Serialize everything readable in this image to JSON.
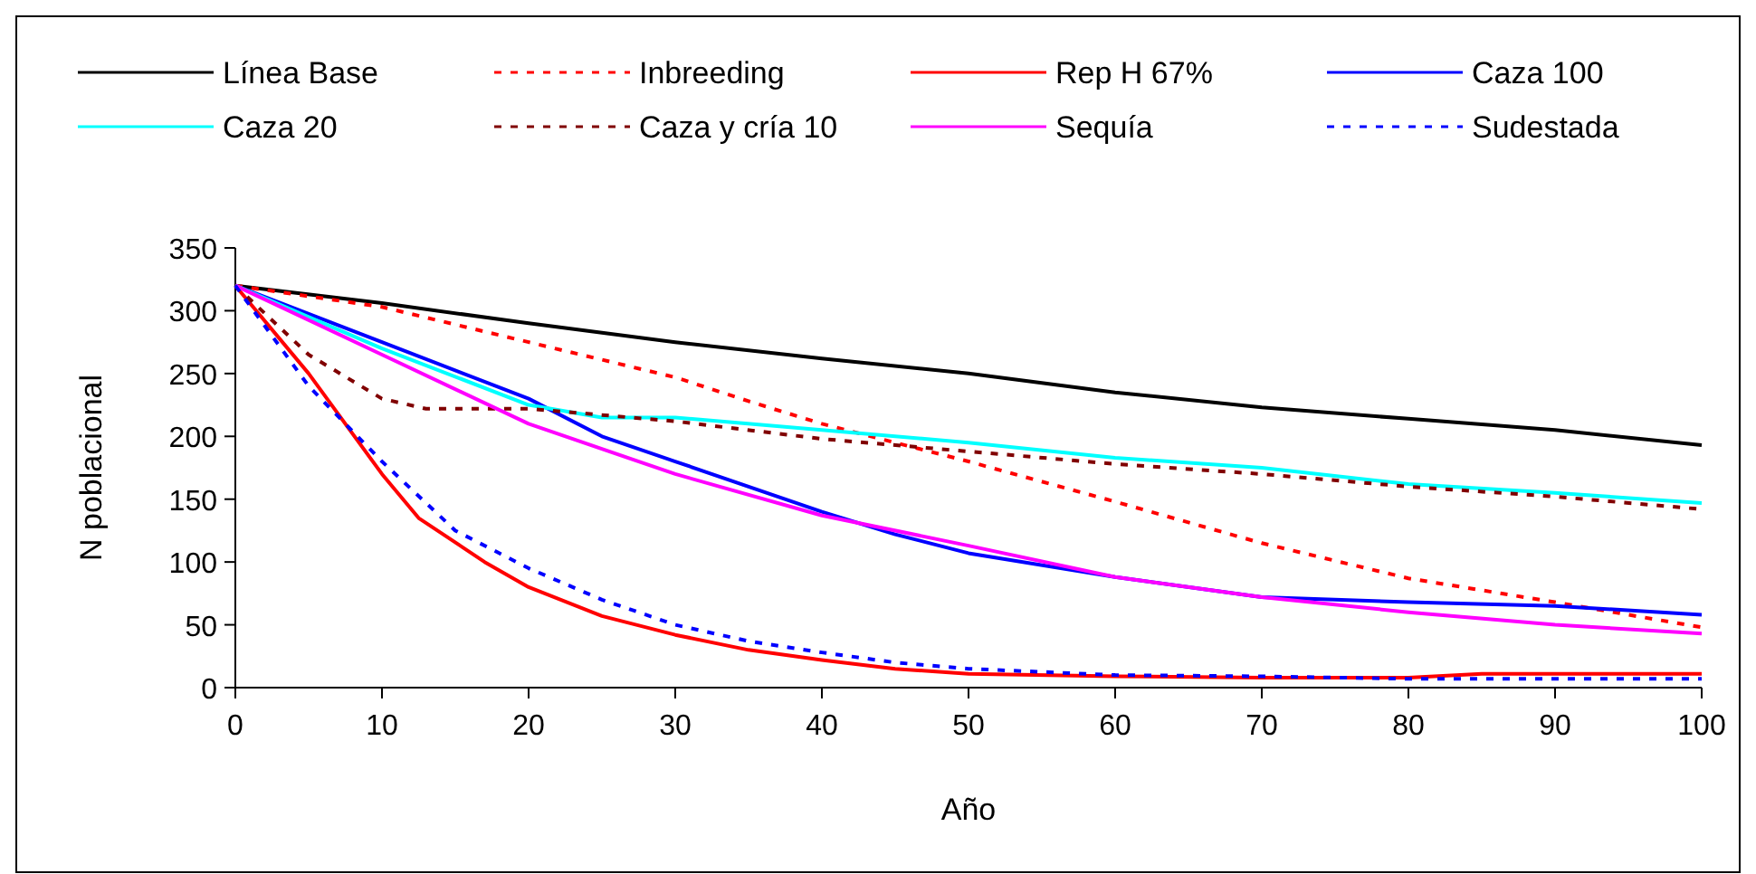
{
  "chart_data": {
    "type": "line",
    "xlabel": "Año",
    "ylabel": "N poblacional",
    "xlim": [
      0,
      100
    ],
    "xticks": [
      0,
      10,
      20,
      30,
      40,
      50,
      60,
      70,
      80,
      90,
      100
    ],
    "ylim": [
      0,
      350
    ],
    "yticks": [
      0,
      50,
      100,
      150,
      200,
      250,
      300,
      350
    ],
    "grid": false,
    "legend": "top",
    "marker": "none",
    "series": [
      {
        "name": "Línea Base",
        "color": "#000000",
        "line_style": "solid",
        "x": [
          0,
          10,
          20,
          30,
          40,
          50,
          60,
          70,
          80,
          90,
          100
        ],
        "values": [
          320,
          306,
          290,
          275,
          262,
          250,
          235,
          223,
          214,
          205,
          193
        ]
      },
      {
        "name": "Inbreeding",
        "color": "#ff0000",
        "line_style": "dashed",
        "x": [
          0,
          10,
          20,
          30,
          35,
          40,
          50,
          60,
          70,
          80,
          90,
          100
        ],
        "values": [
          320,
          303,
          275,
          247,
          228,
          210,
          180,
          148,
          115,
          87,
          68,
          48
        ]
      },
      {
        "name": "Rep H 67%",
        "color": "#ff0000",
        "line_style": "solid",
        "x": [
          0,
          5,
          10,
          12.5,
          17,
          20,
          25,
          30,
          35,
          40,
          45,
          50,
          60,
          70,
          80,
          85,
          100
        ],
        "values": [
          320,
          250,
          170,
          135,
          100,
          80,
          57,
          42,
          30,
          22,
          15,
          11,
          9,
          8,
          8,
          11,
          11
        ]
      },
      {
        "name": "Caza 100",
        "color": "#0000ff",
        "line_style": "solid",
        "x": [
          0,
          10,
          20,
          25,
          30,
          40,
          45,
          50,
          60,
          70,
          80,
          90,
          100
        ],
        "values": [
          320,
          275,
          230,
          200,
          180,
          140,
          122,
          107,
          88,
          72,
          68,
          65,
          58
        ]
      },
      {
        "name": "Caza 20",
        "color": "#00ffff",
        "line_style": "solid",
        "x": [
          0,
          10,
          20,
          25,
          30,
          40,
          50,
          60,
          70,
          80,
          90,
          100
        ],
        "values": [
          320,
          270,
          225,
          215,
          215,
          205,
          195,
          183,
          175,
          162,
          155,
          147
        ]
      },
      {
        "name": "Caza y cría 10",
        "color": "#800000",
        "line_style": "dashed",
        "x": [
          0,
          5,
          10,
          13,
          17,
          20,
          30,
          40,
          50,
          60,
          70,
          80,
          90,
          100
        ],
        "values": [
          320,
          265,
          230,
          222,
          222,
          222,
          212,
          198,
          188,
          178,
          170,
          160,
          152,
          142
        ]
      },
      {
        "name": "Sequía",
        "color": "#ff00ff",
        "line_style": "solid",
        "x": [
          0,
          10,
          20,
          30,
          40,
          50,
          60,
          70,
          80,
          90,
          100
        ],
        "values": [
          320,
          265,
          210,
          170,
          137,
          113,
          88,
          72,
          60,
          50,
          43
        ]
      },
      {
        "name": "Sudestada",
        "color": "#0000ff",
        "line_style": "dashed",
        "x": [
          0,
          5,
          10,
          15,
          20,
          25,
          30,
          35,
          40,
          45,
          50,
          60,
          70,
          80,
          90,
          100
        ],
        "values": [
          320,
          240,
          180,
          125,
          95,
          70,
          50,
          37,
          28,
          20,
          15,
          10,
          9,
          7,
          7,
          7
        ]
      }
    ]
  }
}
